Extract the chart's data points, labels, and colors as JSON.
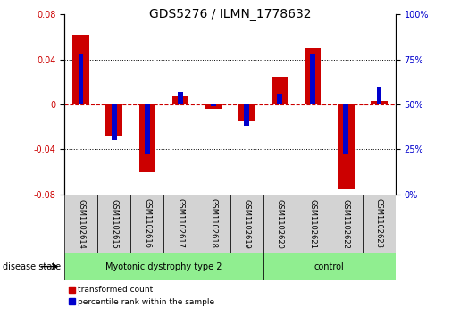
{
  "title": "GDS5276 / ILMN_1778632",
  "samples": [
    "GSM1102614",
    "GSM1102615",
    "GSM1102616",
    "GSM1102617",
    "GSM1102618",
    "GSM1102619",
    "GSM1102620",
    "GSM1102621",
    "GSM1102622",
    "GSM1102623"
  ],
  "red_values": [
    0.062,
    -0.028,
    -0.06,
    0.007,
    -0.004,
    -0.015,
    0.025,
    0.05,
    -0.075,
    0.003
  ],
  "blue_values_pct": [
    78,
    30,
    22,
    57,
    49,
    38,
    56,
    78,
    22,
    60
  ],
  "ylim_left": [
    -0.08,
    0.08
  ],
  "ylim_right": [
    0,
    100
  ],
  "yticks_left": [
    -0.08,
    -0.04,
    0.0,
    0.04,
    0.08
  ],
  "yticks_right": [
    0,
    25,
    50,
    75,
    100
  ],
  "disease_groups": [
    {
      "label": "Myotonic dystrophy type 2",
      "start": 0,
      "end": 6,
      "color": "#90EE90"
    },
    {
      "label": "control",
      "start": 6,
      "end": 10,
      "color": "#90EE90"
    }
  ],
  "disease_state_label": "disease state",
  "legend_red": "transformed count",
  "legend_blue": "percentile rank within the sample",
  "bar_width": 0.5,
  "blue_bar_width": 0.15,
  "red_color": "#CC0000",
  "blue_color": "#0000CC",
  "zero_line_color": "#CC0000",
  "left_axis_color": "#CC0000",
  "right_axis_color": "#0000CC",
  "sample_box_color": "#D3D3D3",
  "label_fontsize": 6,
  "tick_fontsize": 7,
  "title_fontsize": 10
}
